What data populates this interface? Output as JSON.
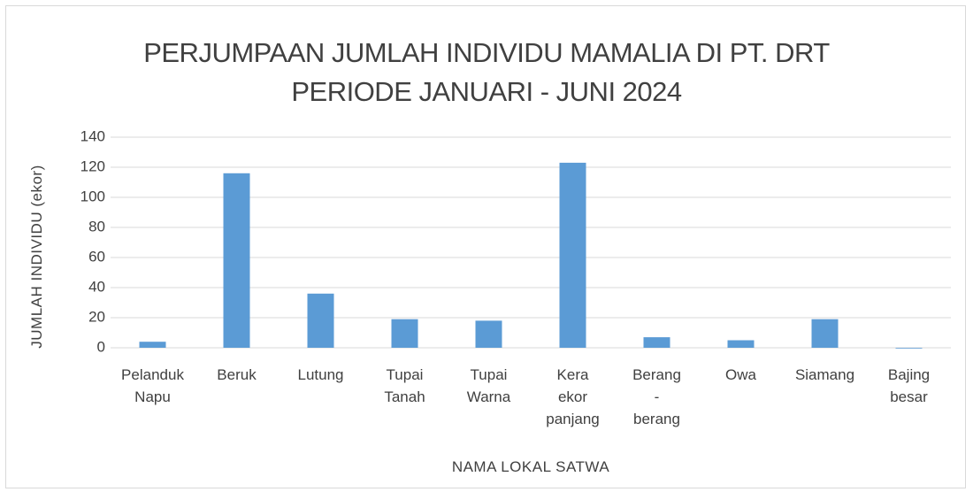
{
  "chart_data": {
    "type": "bar",
    "title": "PERJUMPAAN JUMLAH INDIVIDU MAMALIA DI PT. DRT PERIODE JANUARI - JUNI 2024",
    "x_label": "NAMA LOKAL SATWA",
    "y_label": "JUMLAH INDIVIDU (ekor)",
    "categories": [
      "Pelanduk Napu",
      "Beruk",
      "Lutung",
      "Tupai Tanah",
      "Tupai Warna",
      "Kera ekor panjang",
      "Berang - berang",
      "Owa",
      "Siamang",
      "Bajing besar"
    ],
    "values": [
      4,
      116,
      36,
      19,
      18,
      123,
      7,
      5,
      19,
      0
    ],
    "color": "#5b9bd5",
    "ylim": [
      0,
      140
    ],
    "yticks": [
      0,
      20,
      40,
      60,
      80,
      100,
      120,
      140
    ],
    "grid": true
  }
}
